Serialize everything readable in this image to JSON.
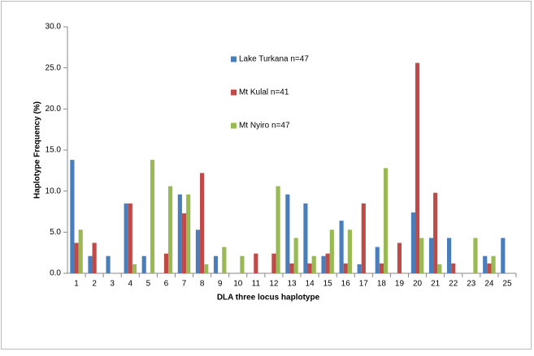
{
  "chart_data": {
    "type": "bar",
    "x_label": "DLA three locus haplotype",
    "y_label": "Haplotype Frequency (%)",
    "categories": [
      "1",
      "2",
      "3",
      "4",
      "5",
      "6",
      "7",
      "8",
      "9",
      "10",
      "11",
      "12",
      "13",
      "14",
      "15",
      "16",
      "17",
      "18",
      "19",
      "20",
      "21",
      "22",
      "23",
      "24",
      "25"
    ],
    "series": [
      {
        "name": "Lake Turkana n=47",
        "color": "#4a7ebb",
        "values": [
          13.8,
          2.1,
          2.1,
          8.5,
          2.1,
          0,
          9.6,
          5.3,
          2.1,
          0,
          0,
          0,
          9.6,
          8.5,
          2.1,
          6.4,
          1.1,
          3.2,
          0,
          7.4,
          4.3,
          4.3,
          0,
          2.1,
          4.3
        ]
      },
      {
        "name": "Mt Kulal n=41",
        "color": "#be4b48",
        "values": [
          3.7,
          3.7,
          0,
          8.5,
          0,
          2.4,
          7.3,
          12.2,
          0,
          0,
          2.4,
          2.4,
          1.2,
          1.2,
          2.4,
          1.2,
          8.5,
          1.2,
          3.7,
          25.6,
          9.8,
          1.2,
          0,
          1.2,
          0
        ]
      },
      {
        "name": "Mt Nyiro n=47",
        "color": "#98b954",
        "values": [
          5.3,
          0,
          0,
          1.1,
          13.8,
          10.6,
          9.6,
          1.1,
          3.2,
          2.1,
          0,
          10.6,
          4.3,
          2.1,
          5.3,
          5.3,
          0,
          12.8,
          0,
          4.3,
          1.1,
          0,
          4.3,
          2.1,
          0
        ]
      }
    ],
    "ylim": [
      0,
      30
    ],
    "yticks": [
      {
        "value": 0,
        "label": "0.0"
      },
      {
        "value": 5,
        "label": "5.0"
      },
      {
        "value": 10,
        "label": "10.0"
      },
      {
        "value": 15,
        "label": "15.0"
      },
      {
        "value": 20,
        "label": "20.0"
      },
      {
        "value": 25,
        "label": "25.0"
      },
      {
        "value": 30,
        "label": "30.0"
      }
    ],
    "grid": false
  }
}
